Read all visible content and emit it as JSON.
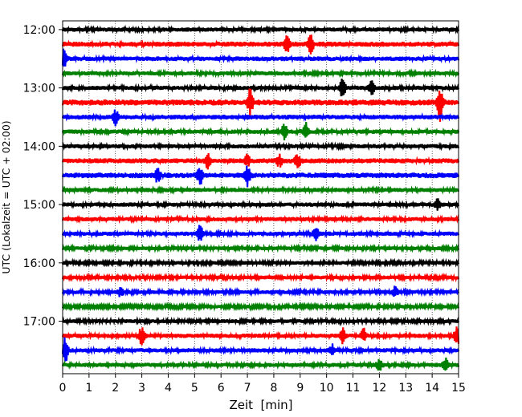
{
  "chart_data": {
    "type": "line",
    "title": "",
    "xlabel": "Zeit  [min]",
    "ylabel": "UTC (Lokalzeit = UTC + 02:00)",
    "xlim": [
      0,
      15
    ],
    "x_ticks": [
      0,
      1,
      2,
      3,
      4,
      5,
      6,
      7,
      8,
      9,
      10,
      11,
      12,
      13,
      14,
      15
    ],
    "x_tick_labels": [
      "0",
      "1",
      "2",
      "3",
      "4",
      "5",
      "6",
      "7",
      "8",
      "9",
      "10",
      "11",
      "12",
      "13",
      "14",
      "15"
    ],
    "ylim_rows": [
      -0.6,
      23.6
    ],
    "y_tick_rows": [
      0,
      4,
      8,
      12,
      16,
      20
    ],
    "y_tick_labels": [
      "12:00",
      "13:00",
      "14:00",
      "15:00",
      "16:00",
      "17:00"
    ],
    "row_minutes": 15,
    "color_cycle": [
      "#000000",
      "#ff0000",
      "#0000ff",
      "#008000"
    ],
    "grid": "vertical dotted at x ticks",
    "traces": [
      {
        "start": "12:00",
        "noise": 0.1,
        "events": []
      },
      {
        "start": "12:15",
        "noise": 0.12,
        "events": [
          {
            "t": 8.5,
            "amp": 0.35
          },
          {
            "t": 9.4,
            "amp": 0.45
          }
        ]
      },
      {
        "start": "12:30",
        "noise": 0.11,
        "events": [
          {
            "t": 0.05,
            "amp": 0.4
          }
        ]
      },
      {
        "start": "12:45",
        "noise": 0.1,
        "events": []
      },
      {
        "start": "13:00",
        "noise": 0.1,
        "events": [
          {
            "t": 10.6,
            "amp": 0.45
          },
          {
            "t": 11.7,
            "amp": 0.35
          }
        ]
      },
      {
        "start": "13:15",
        "noise": 0.14,
        "events": [
          {
            "t": 7.1,
            "amp": 0.6
          },
          {
            "t": 14.3,
            "amp": 0.9
          }
        ]
      },
      {
        "start": "13:30",
        "noise": 0.11,
        "events": [
          {
            "t": 2.0,
            "amp": 0.4
          }
        ]
      },
      {
        "start": "13:45",
        "noise": 0.1,
        "events": [
          {
            "t": 8.4,
            "amp": 0.35
          },
          {
            "t": 9.2,
            "amp": 0.4
          }
        ]
      },
      {
        "start": "14:00",
        "noise": 0.1,
        "events": []
      },
      {
        "start": "14:15",
        "noise": 0.12,
        "events": [
          {
            "t": 5.5,
            "amp": 0.3
          },
          {
            "t": 7.0,
            "amp": 0.3
          },
          {
            "t": 8.2,
            "amp": 0.3
          },
          {
            "t": 8.9,
            "amp": 0.35
          }
        ]
      },
      {
        "start": "14:30",
        "noise": 0.13,
        "events": [
          {
            "t": 3.6,
            "amp": 0.35
          },
          {
            "t": 5.2,
            "amp": 0.5
          },
          {
            "t": 7.0,
            "amp": 0.45
          }
        ]
      },
      {
        "start": "14:45",
        "noise": 0.1,
        "events": []
      },
      {
        "start": "15:00",
        "noise": 0.1,
        "events": [
          {
            "t": 14.2,
            "amp": 0.25
          }
        ]
      },
      {
        "start": "15:15",
        "noise": 0.1,
        "events": []
      },
      {
        "start": "15:30",
        "noise": 0.1,
        "events": [
          {
            "t": 5.2,
            "amp": 0.4
          },
          {
            "t": 9.6,
            "amp": 0.3
          }
        ]
      },
      {
        "start": "15:45",
        "noise": 0.09,
        "events": []
      },
      {
        "start": "16:00",
        "noise": 0.09,
        "events": []
      },
      {
        "start": "16:15",
        "noise": 0.09,
        "events": []
      },
      {
        "start": "16:30",
        "noise": 0.09,
        "events": [
          {
            "t": 2.2,
            "amp": 0.25
          },
          {
            "t": 12.6,
            "amp": 0.25
          }
        ]
      },
      {
        "start": "16:45",
        "noise": 0.08,
        "events": []
      },
      {
        "start": "17:00",
        "noise": 0.09,
        "events": []
      },
      {
        "start": "17:15",
        "noise": 0.1,
        "events": [
          {
            "t": 3.0,
            "amp": 0.5
          },
          {
            "t": 10.6,
            "amp": 0.35
          },
          {
            "t": 11.4,
            "amp": 0.3
          },
          {
            "t": 14.95,
            "amp": 0.45
          }
        ]
      },
      {
        "start": "17:30",
        "noise": 0.1,
        "events": [
          {
            "t": 0.1,
            "amp": 0.7
          },
          {
            "t": 10.2,
            "amp": 0.25
          }
        ]
      },
      {
        "start": "17:45",
        "noise": 0.1,
        "events": [
          {
            "t": 12.0,
            "amp": 0.25
          },
          {
            "t": 14.5,
            "amp": 0.3
          }
        ]
      }
    ]
  }
}
